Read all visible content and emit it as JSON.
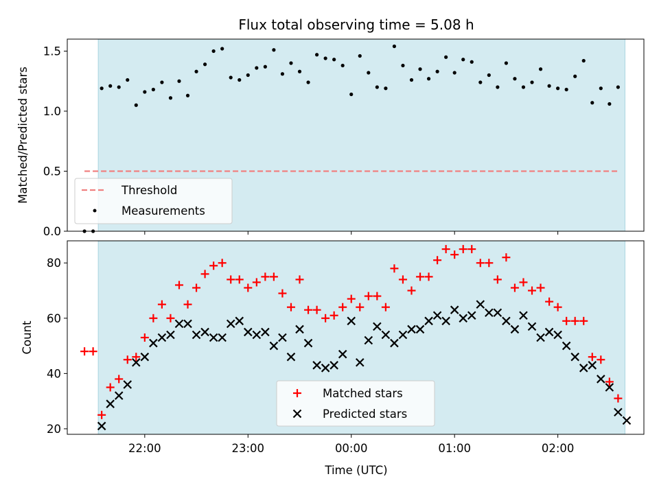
{
  "chart_data": [
    {
      "type": "scatter",
      "title": "Flux total observing time = 5.08 h",
      "xlabel": "",
      "ylabel": "Matched/Predicted stars",
      "x_unit": "hours UTC",
      "xlim": [
        "21:15",
        "02:50"
      ],
      "ylim": [
        0,
        1.6
      ],
      "yticks": [
        "0.0",
        "0.5",
        "1.0",
        "1.5"
      ],
      "observing_window": [
        "21:33",
        "02:39"
      ],
      "legend_location": "lower-left",
      "colors": {
        "window": "#d4ebf1",
        "window_edge": "#a8d4e0",
        "threshold": "#f08080",
        "measurements": "#000000"
      },
      "series": [
        {
          "name": "Threshold",
          "style": "dashed-line",
          "x": [
            "21:25",
            "02:35"
          ],
          "y": [
            0.5,
            0.5
          ]
        },
        {
          "name": "Measurements",
          "style": "dots",
          "x": [
            "21:25",
            "21:30",
            "21:35",
            "21:40",
            "21:45",
            "21:50",
            "21:55",
            "22:00",
            "22:05",
            "22:10",
            "22:15",
            "22:20",
            "22:25",
            "22:30",
            "22:35",
            "22:40",
            "22:45",
            "22:50",
            "22:55",
            "23:00",
            "23:05",
            "23:10",
            "23:15",
            "23:20",
            "23:25",
            "23:30",
            "23:35",
            "23:40",
            "23:45",
            "23:50",
            "23:55",
            "00:00",
            "00:05",
            "00:10",
            "00:15",
            "00:20",
            "00:25",
            "00:30",
            "00:35",
            "00:40",
            "00:45",
            "00:50",
            "00:55",
            "01:00",
            "01:05",
            "01:10",
            "01:15",
            "01:20",
            "01:25",
            "01:30",
            "01:35",
            "01:40",
            "01:45",
            "01:50",
            "01:55",
            "02:00",
            "02:05",
            "02:10",
            "02:15",
            "02:20",
            "02:25",
            "02:30",
            "02:35"
          ],
          "y": [
            0.0,
            0.0,
            1.19,
            1.21,
            1.2,
            1.26,
            1.05,
            1.16,
            1.18,
            1.24,
            1.11,
            1.25,
            1.13,
            1.33,
            1.39,
            1.5,
            1.52,
            1.28,
            1.26,
            1.3,
            1.36,
            1.37,
            1.51,
            1.31,
            1.4,
            1.33,
            1.24,
            1.47,
            1.44,
            1.43,
            1.38,
            1.14,
            1.46,
            1.32,
            1.2,
            1.19,
            1.54,
            1.38,
            1.26,
            1.35,
            1.27,
            1.33,
            1.45,
            1.32,
            1.43,
            1.41,
            1.24,
            1.3,
            1.2,
            1.4,
            1.27,
            1.2,
            1.24,
            1.35,
            1.21,
            1.19,
            1.18,
            1.29,
            1.42,
            1.07,
            1.19,
            1.06,
            1.2
          ]
        }
      ]
    },
    {
      "type": "scatter",
      "title": "",
      "xlabel": "Time (UTC)",
      "ylabel": "Count",
      "x_unit": "hours UTC",
      "xlim": [
        "21:15",
        "02:50"
      ],
      "ylim": [
        18,
        88
      ],
      "xticks": [
        "22:00",
        "23:00",
        "00:00",
        "01:00",
        "02:00"
      ],
      "yticks": [
        "20",
        "40",
        "60",
        "80"
      ],
      "observing_window": [
        "21:33",
        "02:39"
      ],
      "legend_location": "lower-center",
      "colors": {
        "window": "#d4ebf1",
        "window_edge": "#a8d4e0",
        "matched": "#ff0000",
        "predicted": "#000000"
      },
      "series": [
        {
          "name": "Matched stars",
          "marker": "plus",
          "x": [
            "21:25",
            "21:30",
            "21:35",
            "21:40",
            "21:45",
            "21:50",
            "21:55",
            "22:00",
            "22:05",
            "22:10",
            "22:15",
            "22:20",
            "22:25",
            "22:30",
            "22:35",
            "22:40",
            "22:45",
            "22:50",
            "22:55",
            "23:00",
            "23:05",
            "23:10",
            "23:15",
            "23:20",
            "23:25",
            "23:30",
            "23:35",
            "23:40",
            "23:45",
            "23:50",
            "23:55",
            "00:00",
            "00:05",
            "00:10",
            "00:15",
            "00:20",
            "00:25",
            "00:30",
            "00:35",
            "00:40",
            "00:45",
            "00:50",
            "00:55",
            "01:00",
            "01:05",
            "01:10",
            "01:15",
            "01:20",
            "01:25",
            "01:30",
            "01:35",
            "01:40",
            "01:45",
            "01:50",
            "01:55",
            "02:00",
            "02:05",
            "02:10",
            "02:15",
            "02:20",
            "02:25",
            "02:30",
            "02:35"
          ],
          "y": [
            48,
            48,
            25,
            35,
            38,
            45,
            46,
            53,
            60,
            65,
            60,
            72,
            65,
            71,
            76,
            79,
            80,
            74,
            74,
            71,
            73,
            75,
            75,
            69,
            64,
            74,
            63,
            63,
            60,
            61,
            64,
            67,
            64,
            68,
            68,
            64,
            78,
            74,
            70,
            75,
            75,
            81,
            85,
            83,
            85,
            85,
            80,
            80,
            74,
            82,
            71,
            73,
            70,
            71,
            66,
            64,
            59,
            59,
            59,
            46,
            45,
            37,
            31
          ]
        },
        {
          "name": "Predicted stars",
          "marker": "cross",
          "x": [
            "21:35",
            "21:40",
            "21:45",
            "21:50",
            "21:55",
            "22:00",
            "22:05",
            "22:10",
            "22:15",
            "22:20",
            "22:25",
            "22:30",
            "22:35",
            "22:40",
            "22:45",
            "22:50",
            "22:55",
            "23:00",
            "23:05",
            "23:10",
            "23:15",
            "23:20",
            "23:25",
            "23:30",
            "23:35",
            "23:40",
            "23:45",
            "23:50",
            "23:55",
            "00:00",
            "00:05",
            "00:10",
            "00:15",
            "00:20",
            "00:25",
            "00:30",
            "00:35",
            "00:40",
            "00:45",
            "00:50",
            "00:55",
            "01:00",
            "01:05",
            "01:10",
            "01:15",
            "01:20",
            "01:25",
            "01:30",
            "01:35",
            "01:40",
            "01:45",
            "01:50",
            "01:55",
            "02:00",
            "02:05",
            "02:10",
            "02:15",
            "02:20",
            "02:25",
            "02:30",
            "02:35",
            "02:40"
          ],
          "y": [
            21,
            29,
            32,
            36,
            44,
            46,
            51,
            53,
            54,
            58,
            58,
            54,
            55,
            53,
            53,
            58,
            59,
            55,
            54,
            55,
            50,
            53,
            46,
            56,
            51,
            43,
            42,
            43,
            47,
            59,
            44,
            52,
            57,
            54,
            51,
            54,
            56,
            56,
            59,
            61,
            59,
            63,
            60,
            61,
            65,
            62,
            62,
            59,
            56,
            61,
            57,
            53,
            55,
            54,
            50,
            46,
            42,
            43,
            38,
            35,
            26,
            23
          ]
        }
      ]
    }
  ]
}
